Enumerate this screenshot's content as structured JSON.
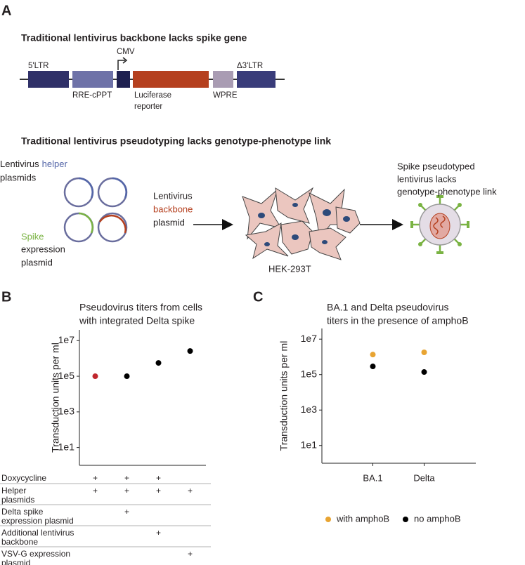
{
  "panel_labels": [
    "A",
    "B",
    "C"
  ],
  "panel_a": {
    "title_1": "Traditional lentivirus backbone lacks spike gene",
    "elements": {
      "ltr5": "5'LTR",
      "cmv": "CMV",
      "ltr3": "Δ3'LTR",
      "rre": "RRE-cPPT",
      "luciferase": [
        "Luciferase",
        "reporter"
      ],
      "wpre": "WPRE"
    },
    "title_2": "Traditional lentivirus pseudotyping lacks genotype-phenotype link",
    "helper_text": [
      [
        "Lentivirus",
        "helper"
      ],
      [
        "plasmids"
      ]
    ],
    "spike_text": [
      "Spike",
      "expression",
      "plasmid"
    ],
    "backbone_text": [
      "Lentivirus",
      "backbone",
      "plasmid"
    ],
    "cell_label": "HEK-293T",
    "virus_text": [
      "Spike pseudotyped",
      "lentivirus lacks",
      "genotype-phenotype link"
    ]
  },
  "chart_data": [
    {
      "type": "scatter",
      "title": [
        "Pseudovirus titers from cells",
        "with integrated Delta spike"
      ],
      "y_label": "Transduction units per ml",
      "yscale": "log",
      "categories": [
        null,
        null,
        null,
        null
      ],
      "series": [
        {
          "values": [
            100000,
            100000,
            560000,
            2600000
          ],
          "point_colors": [
            "#c0272d",
            "#000000",
            "#000000",
            "#000000"
          ]
        }
      ],
      "ylim": [
        1,
        40000000
      ],
      "yticks": [
        {
          "value": 10,
          "label": "1e1"
        },
        {
          "value": 1000,
          "label": "1e3"
        },
        {
          "value": 100000,
          "label": "1e5"
        },
        {
          "value": 10000000,
          "label": "1e7"
        }
      ]
    },
    {
      "type": "scatter",
      "title": [
        "BA.1 and Delta pseudovirus",
        "titers in the presence of amphoB"
      ],
      "y_label": "Transduction units per ml",
      "yscale": "log",
      "categories": [
        "BA.1",
        "Delta"
      ],
      "series": [
        {
          "name": "with amphoB",
          "color": "#e8a432",
          "values": [
            1350000,
            1800000
          ]
        },
        {
          "name": "no amphoB",
          "color": "#000000",
          "values": [
            290000,
            140000
          ]
        }
      ],
      "ylim": [
        1,
        40000000
      ],
      "yticks": [
        {
          "value": 10,
          "label": "1e1"
        },
        {
          "value": 1000,
          "label": "1e3"
        },
        {
          "value": 100000,
          "label": "1e5"
        },
        {
          "value": 10000000,
          "label": "1e7"
        }
      ],
      "legend": "bottom"
    }
  ],
  "table": {
    "rows": [
      {
        "label": [
          "Doxycycline"
        ],
        "cells": [
          "+",
          "+",
          "+",
          null
        ]
      },
      {
        "label": [
          "Helper",
          "plasmids"
        ],
        "cells": [
          "+",
          "+",
          "+",
          "+"
        ]
      },
      {
        "label": [
          "Delta spike",
          "expression plasmid"
        ],
        "cells": [
          null,
          "+",
          null,
          null
        ]
      },
      {
        "label": [
          "Additional lentivirus",
          "backbone"
        ],
        "cells": [
          null,
          null,
          "+",
          null
        ]
      },
      {
        "label": [
          "VSV-G expression",
          "plasmid"
        ],
        "cells": [
          null,
          null,
          null,
          "+"
        ]
      }
    ]
  }
}
